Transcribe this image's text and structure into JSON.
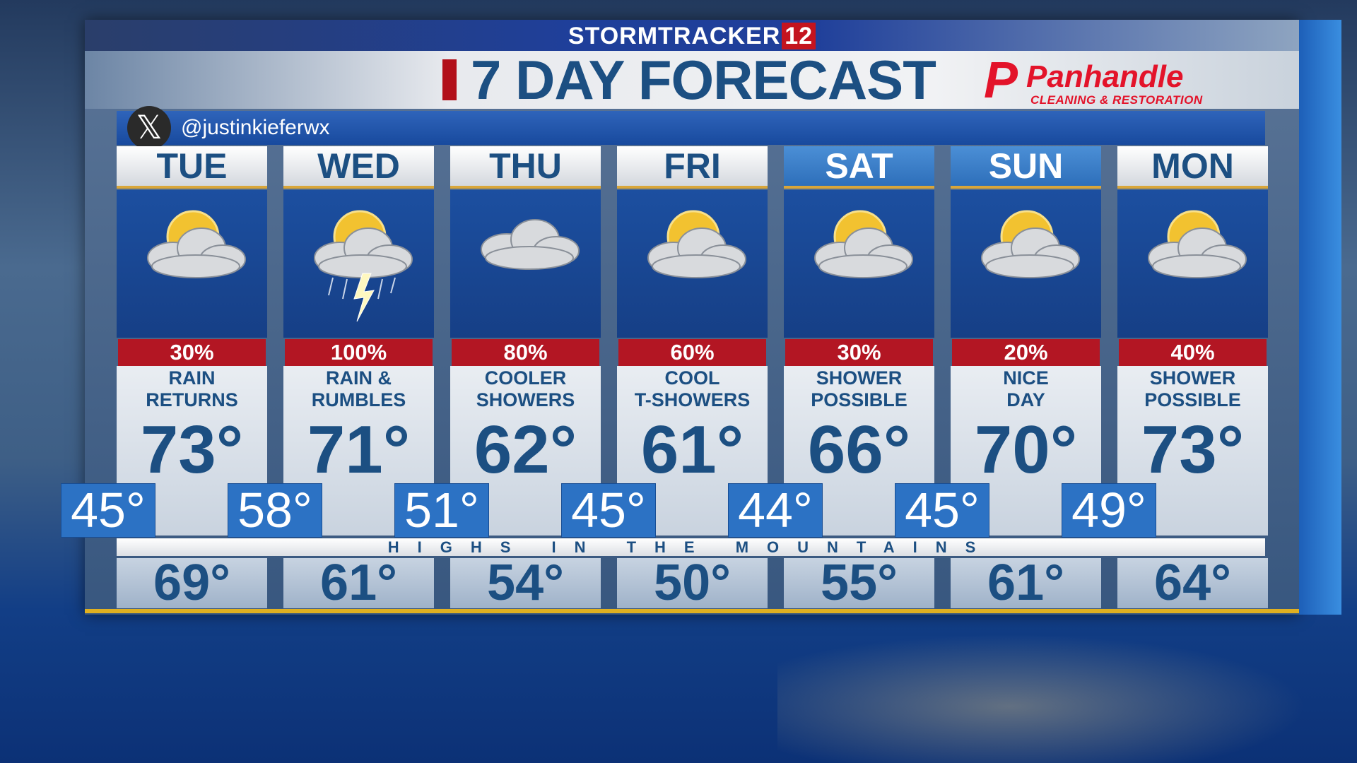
{
  "header": {
    "brand": "STORMTRACKER",
    "brand_number": "12",
    "title": "7 DAY FORECAST"
  },
  "sponsor": {
    "logo_letter": "P",
    "name": "Panhandle",
    "tagline": "CLEANING & RESTORATION"
  },
  "social": {
    "icon": "x-logo-icon",
    "handle": "@justinkieferwx"
  },
  "colors": {
    "precip": "#b31623",
    "text": "#1c4f82",
    "low_box": "#2c72c4",
    "weekend_header": "#3a7fc8"
  },
  "days": [
    {
      "day": "TUE",
      "icon": "partly-cloudy",
      "precip": "30%",
      "desc1": "RAIN",
      "desc2": "RETURNS",
      "high": "73°",
      "low": "45°",
      "mountain": "69°",
      "weekend": false
    },
    {
      "day": "WED",
      "icon": "thunderstorm",
      "precip": "100%",
      "desc1": "RAIN &",
      "desc2": "RUMBLES",
      "high": "71°",
      "low": "58°",
      "mountain": "61°",
      "weekend": false
    },
    {
      "day": "THU",
      "icon": "cloudy",
      "precip": "80%",
      "desc1": "COOLER",
      "desc2": "SHOWERS",
      "high": "62°",
      "low": "51°",
      "mountain": "54°",
      "weekend": false
    },
    {
      "day": "FRI",
      "icon": "partly-cloudy",
      "precip": "60%",
      "desc1": "COOL",
      "desc2": "T-SHOWERS",
      "high": "61°",
      "low": "45°",
      "mountain": "50°",
      "weekend": false
    },
    {
      "day": "SAT",
      "icon": "partly-cloudy",
      "precip": "30%",
      "desc1": "SHOWER",
      "desc2": "POSSIBLE",
      "high": "66°",
      "low": "44°",
      "mountain": "55°",
      "weekend": true
    },
    {
      "day": "SUN",
      "icon": "partly-cloudy",
      "precip": "20%",
      "desc1": "NICE",
      "desc2": "DAY",
      "high": "70°",
      "low": "45°",
      "mountain": "61°",
      "weekend": true
    },
    {
      "day": "MON",
      "icon": "partly-cloudy",
      "precip": "40%",
      "desc1": "SHOWER",
      "desc2": "POSSIBLE",
      "high": "73°",
      "low": "49°",
      "mountain": "64°",
      "weekend": false
    }
  ],
  "mountains_label": "HIGHS IN THE MOUNTAINS"
}
